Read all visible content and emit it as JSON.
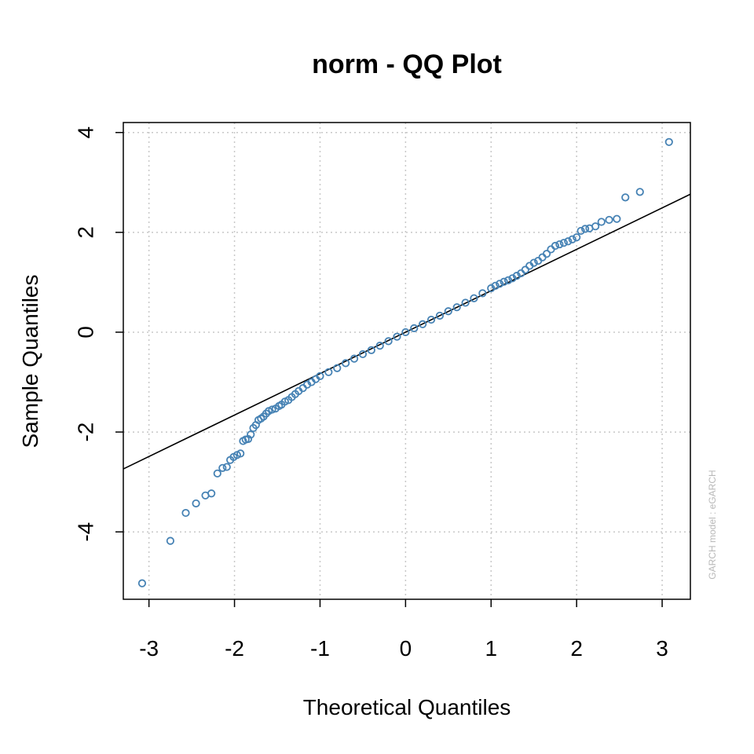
{
  "chart_data": {
    "type": "scatter",
    "title": "norm - QQ Plot",
    "xlabel": "Theoretical Quantiles",
    "ylabel": "Sample Quantiles",
    "watermark": "GARCH model :  eGARCH",
    "xlim": [
      -3.3,
      3.33
    ],
    "ylim": [
      -5.35,
      4.2
    ],
    "xticks": [
      -3,
      -2,
      -1,
      0,
      1,
      2,
      3
    ],
    "yticks": [
      -4,
      -2,
      0,
      2,
      4
    ],
    "xtick_labels": [
      "-3",
      "-2",
      "-1",
      "0",
      "1",
      "2",
      "3"
    ],
    "ytick_labels": [
      "-4",
      "-2",
      "0",
      "2",
      "4"
    ],
    "grid": true,
    "point_color": "#4682B4",
    "line_color": "#000000",
    "reference_line": {
      "slope": 0.83,
      "intercept": 0.0
    },
    "points": [
      [
        -3.08,
        -5.03
      ],
      [
        -2.75,
        -4.18
      ],
      [
        -2.57,
        -3.62
      ],
      [
        -2.45,
        -3.43
      ],
      [
        -2.34,
        -3.27
      ],
      [
        -2.27,
        -3.23
      ],
      [
        -2.2,
        -2.83
      ],
      [
        -2.14,
        -2.72
      ],
      [
        -2.09,
        -2.7
      ],
      [
        -2.05,
        -2.56
      ],
      [
        -2.01,
        -2.5
      ],
      [
        -1.97,
        -2.46
      ],
      [
        -1.93,
        -2.43
      ],
      [
        -1.9,
        -2.18
      ],
      [
        -1.87,
        -2.15
      ],
      [
        -1.84,
        -2.14
      ],
      [
        -1.81,
        -2.05
      ],
      [
        -1.78,
        -1.92
      ],
      [
        -1.75,
        -1.86
      ],
      [
        -1.72,
        -1.76
      ],
      [
        -1.69,
        -1.73
      ],
      [
        -1.66,
        -1.69
      ],
      [
        -1.63,
        -1.63
      ],
      [
        -1.6,
        -1.58
      ],
      [
        -1.56,
        -1.55
      ],
      [
        -1.52,
        -1.53
      ],
      [
        -1.48,
        -1.48
      ],
      [
        -1.45,
        -1.45
      ],
      [
        -1.41,
        -1.39
      ],
      [
        -1.37,
        -1.36
      ],
      [
        -1.33,
        -1.3
      ],
      [
        -1.29,
        -1.24
      ],
      [
        -1.25,
        -1.18
      ],
      [
        -1.2,
        -1.12
      ],
      [
        -1.15,
        -1.05
      ],
      [
        -1.1,
        -1.0
      ],
      [
        -1.05,
        -0.94
      ],
      [
        -1.0,
        -0.88
      ],
      [
        -0.9,
        -0.8
      ],
      [
        -0.8,
        -0.72
      ],
      [
        -0.7,
        -0.62
      ],
      [
        -0.6,
        -0.53
      ],
      [
        -0.5,
        -0.44
      ],
      [
        -0.4,
        -0.36
      ],
      [
        -0.3,
        -0.27
      ],
      [
        -0.2,
        -0.18
      ],
      [
        -0.1,
        -0.09
      ],
      [
        0.0,
        0.0
      ],
      [
        0.1,
        0.08
      ],
      [
        0.2,
        0.16
      ],
      [
        0.3,
        0.25
      ],
      [
        0.4,
        0.33
      ],
      [
        0.5,
        0.42
      ],
      [
        0.6,
        0.5
      ],
      [
        0.7,
        0.59
      ],
      [
        0.8,
        0.68
      ],
      [
        0.9,
        0.78
      ],
      [
        1.0,
        0.88
      ],
      [
        1.05,
        0.93
      ],
      [
        1.1,
        0.97
      ],
      [
        1.15,
        1.01
      ],
      [
        1.2,
        1.04
      ],
      [
        1.25,
        1.08
      ],
      [
        1.3,
        1.13
      ],
      [
        1.35,
        1.18
      ],
      [
        1.4,
        1.25
      ],
      [
        1.45,
        1.33
      ],
      [
        1.5,
        1.39
      ],
      [
        1.55,
        1.43
      ],
      [
        1.6,
        1.5
      ],
      [
        1.65,
        1.57
      ],
      [
        1.7,
        1.66
      ],
      [
        1.75,
        1.73
      ],
      [
        1.8,
        1.76
      ],
      [
        1.85,
        1.79
      ],
      [
        1.9,
        1.82
      ],
      [
        1.95,
        1.86
      ],
      [
        2.0,
        1.9
      ],
      [
        2.05,
        2.03
      ],
      [
        2.1,
        2.07
      ],
      [
        2.15,
        2.08
      ],
      [
        2.22,
        2.12
      ],
      [
        2.29,
        2.21
      ],
      [
        2.38,
        2.25
      ],
      [
        2.47,
        2.27
      ],
      [
        2.57,
        2.7
      ],
      [
        2.74,
        2.81
      ],
      [
        3.08,
        3.81
      ]
    ]
  }
}
